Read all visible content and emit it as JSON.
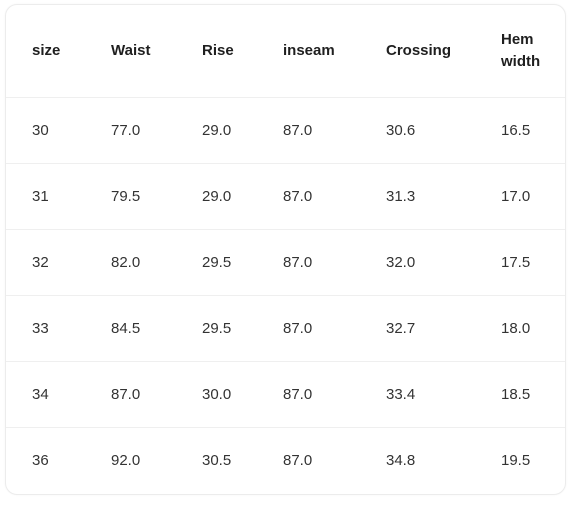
{
  "size_table": {
    "headers": {
      "size": "size",
      "waist": "Waist",
      "rise": "Rise",
      "inseam": "inseam",
      "crossing": "Crossing",
      "hem_width": "Hem width"
    },
    "rows": [
      [
        "30",
        "77.0",
        "29.0",
        "87.0",
        "30.6",
        "16.5"
      ],
      [
        "31",
        "79.5",
        "29.0",
        "87.0",
        "31.3",
        "17.0"
      ],
      [
        "32",
        "82.0",
        "29.5",
        "87.0",
        "32.0",
        "17.5"
      ],
      [
        "33",
        "84.5",
        "29.5",
        "87.0",
        "32.7",
        "18.0"
      ],
      [
        "34",
        "87.0",
        "30.0",
        "87.0",
        "33.4",
        "18.5"
      ],
      [
        "36",
        "92.0",
        "30.5",
        "87.0",
        "34.8",
        "19.5"
      ]
    ]
  }
}
